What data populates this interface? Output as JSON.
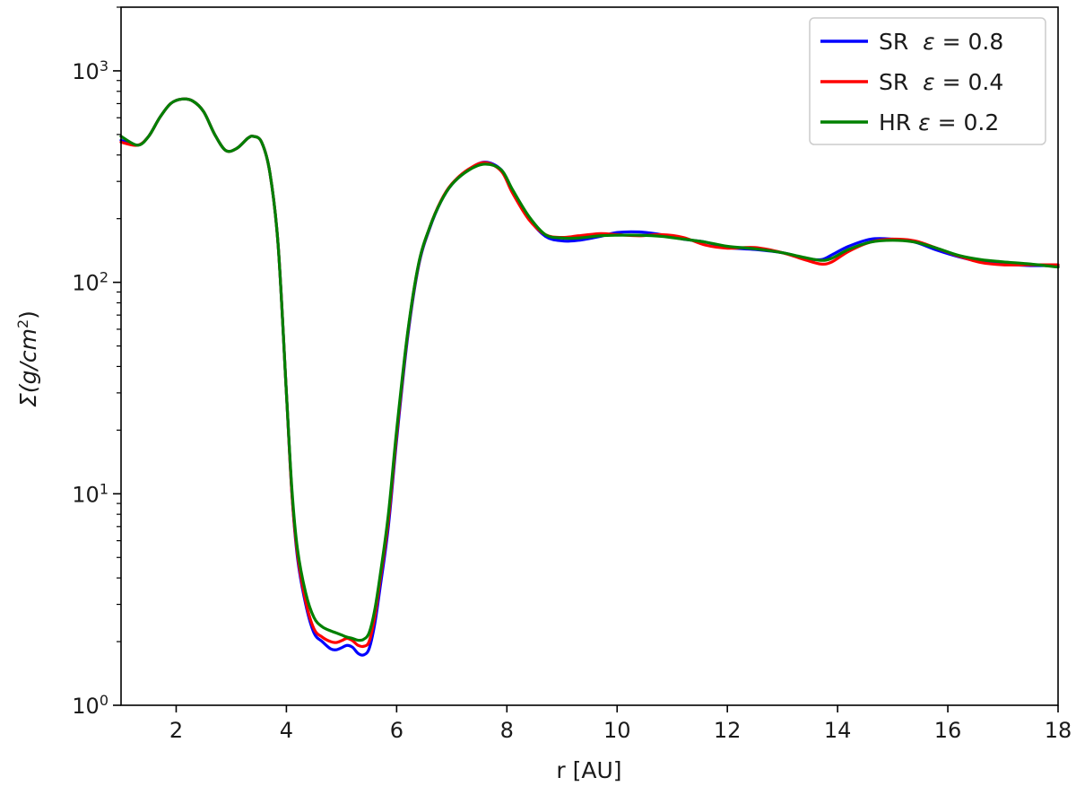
{
  "chart_data": {
    "type": "line",
    "title": "",
    "xlabel": "r [AU]",
    "ylabel_main": "Σ(g/cm",
    "ylabel_sup": "2",
    "ylabel_tail": ")",
    "xlim": [
      1,
      18
    ],
    "ylim": [
      1,
      2000
    ],
    "yscale": "log",
    "grid": false,
    "legend_position": "top-right",
    "x_ticks": [
      2,
      4,
      6,
      8,
      10,
      12,
      14,
      16,
      18
    ],
    "x_tick_labels": [
      "2",
      "4",
      "6",
      "8",
      "10",
      "12",
      "14",
      "16",
      "18"
    ],
    "y_ticks": [
      1,
      10,
      100,
      1000
    ],
    "y_tick_bases": [
      "10",
      "10",
      "10",
      "10"
    ],
    "y_tick_exps": [
      "0",
      "1",
      "2",
      "3"
    ],
    "series": [
      {
        "name_prefix": "SR",
        "name_eps": "ε",
        "name_value": " = 0.8",
        "color": "#0000ff",
        "points": [
          [
            1.0,
            470
          ],
          [
            1.3,
            445
          ],
          [
            1.5,
            490
          ],
          [
            1.7,
            600
          ],
          [
            1.9,
            700
          ],
          [
            2.1,
            735
          ],
          [
            2.3,
            720
          ],
          [
            2.5,
            640
          ],
          [
            2.7,
            500
          ],
          [
            2.9,
            420
          ],
          [
            3.1,
            430
          ],
          [
            3.3,
            480
          ],
          [
            3.4,
            490
          ],
          [
            3.55,
            460
          ],
          [
            3.7,
            330
          ],
          [
            3.85,
            150
          ],
          [
            4.0,
            30
          ],
          [
            4.1,
            10
          ],
          [
            4.2,
            5.0
          ],
          [
            4.35,
            3.0
          ],
          [
            4.5,
            2.2
          ],
          [
            4.65,
            2.0
          ],
          [
            4.8,
            1.85
          ],
          [
            4.9,
            1.83
          ],
          [
            5.0,
            1.87
          ],
          [
            5.1,
            1.92
          ],
          [
            5.2,
            1.88
          ],
          [
            5.3,
            1.76
          ],
          [
            5.4,
            1.73
          ],
          [
            5.5,
            1.85
          ],
          [
            5.6,
            2.4
          ],
          [
            5.7,
            3.6
          ],
          [
            5.85,
            7.0
          ],
          [
            6.0,
            18
          ],
          [
            6.2,
            55
          ],
          [
            6.4,
            120
          ],
          [
            6.6,
            180
          ],
          [
            6.8,
            240
          ],
          [
            7.0,
            290
          ],
          [
            7.3,
            340
          ],
          [
            7.6,
            370
          ],
          [
            7.9,
            340
          ],
          [
            8.1,
            270
          ],
          [
            8.4,
            200
          ],
          [
            8.7,
            165
          ],
          [
            9.0,
            157
          ],
          [
            9.3,
            158
          ],
          [
            9.7,
            165
          ],
          [
            10.0,
            172
          ],
          [
            10.4,
            173
          ],
          [
            10.8,
            168
          ],
          [
            11.2,
            160
          ],
          [
            11.6,
            155
          ],
          [
            12.0,
            146
          ],
          [
            12.5,
            143
          ],
          [
            13.0,
            138
          ],
          [
            13.4,
            130
          ],
          [
            13.7,
            128
          ],
          [
            13.9,
            135
          ],
          [
            14.2,
            148
          ],
          [
            14.6,
            160
          ],
          [
            15.0,
            160
          ],
          [
            15.4,
            155
          ],
          [
            15.8,
            142
          ],
          [
            16.2,
            132
          ],
          [
            16.6,
            125
          ],
          [
            17.0,
            122
          ],
          [
            17.5,
            120
          ],
          [
            18.0,
            120
          ]
        ]
      },
      {
        "name_prefix": "SR",
        "name_eps": "ε",
        "name_value": " = 0.4",
        "color": "#ff0000",
        "points": [
          [
            1.0,
            460
          ],
          [
            1.3,
            445
          ],
          [
            1.5,
            490
          ],
          [
            1.7,
            600
          ],
          [
            1.9,
            700
          ],
          [
            2.1,
            735
          ],
          [
            2.3,
            720
          ],
          [
            2.5,
            640
          ],
          [
            2.7,
            500
          ],
          [
            2.9,
            420
          ],
          [
            3.1,
            430
          ],
          [
            3.3,
            480
          ],
          [
            3.4,
            490
          ],
          [
            3.55,
            460
          ],
          [
            3.7,
            330
          ],
          [
            3.85,
            150
          ],
          [
            4.0,
            30
          ],
          [
            4.1,
            10
          ],
          [
            4.2,
            5.2
          ],
          [
            4.35,
            3.1
          ],
          [
            4.5,
            2.3
          ],
          [
            4.65,
            2.1
          ],
          [
            4.8,
            2.0
          ],
          [
            4.9,
            1.98
          ],
          [
            5.0,
            2.02
          ],
          [
            5.1,
            2.07
          ],
          [
            5.2,
            2.02
          ],
          [
            5.3,
            1.92
          ],
          [
            5.4,
            1.9
          ],
          [
            5.5,
            2.0
          ],
          [
            5.6,
            2.6
          ],
          [
            5.7,
            3.9
          ],
          [
            5.85,
            7.5
          ],
          [
            6.0,
            19
          ],
          [
            6.2,
            57
          ],
          [
            6.4,
            122
          ],
          [
            6.6,
            182
          ],
          [
            6.8,
            242
          ],
          [
            7.0,
            292
          ],
          [
            7.3,
            342
          ],
          [
            7.6,
            368
          ],
          [
            7.9,
            335
          ],
          [
            8.1,
            265
          ],
          [
            8.4,
            198
          ],
          [
            8.7,
            168
          ],
          [
            9.0,
            163
          ],
          [
            9.3,
            166
          ],
          [
            9.7,
            170
          ],
          [
            10.0,
            168
          ],
          [
            10.4,
            166
          ],
          [
            10.8,
            168
          ],
          [
            11.2,
            163
          ],
          [
            11.6,
            150
          ],
          [
            12.0,
            145
          ],
          [
            12.5,
            146
          ],
          [
            13.0,
            138
          ],
          [
            13.4,
            128
          ],
          [
            13.7,
            122
          ],
          [
            13.9,
            125
          ],
          [
            14.2,
            140
          ],
          [
            14.6,
            155
          ],
          [
            15.0,
            160
          ],
          [
            15.4,
            157
          ],
          [
            15.8,
            145
          ],
          [
            16.2,
            133
          ],
          [
            16.6,
            124
          ],
          [
            17.0,
            121
          ],
          [
            17.5,
            121
          ],
          [
            18.0,
            121
          ]
        ]
      },
      {
        "name_prefix": "HR",
        "name_eps": "ε",
        "name_value": " = 0.2",
        "color": "#008000",
        "points": [
          [
            1.0,
            490
          ],
          [
            1.3,
            445
          ],
          [
            1.5,
            490
          ],
          [
            1.7,
            600
          ],
          [
            1.9,
            700
          ],
          [
            2.1,
            735
          ],
          [
            2.3,
            720
          ],
          [
            2.5,
            640
          ],
          [
            2.7,
            500
          ],
          [
            2.9,
            420
          ],
          [
            3.1,
            430
          ],
          [
            3.3,
            480
          ],
          [
            3.4,
            490
          ],
          [
            3.55,
            460
          ],
          [
            3.7,
            330
          ],
          [
            3.85,
            150
          ],
          [
            4.0,
            30
          ],
          [
            4.1,
            10.5
          ],
          [
            4.2,
            5.5
          ],
          [
            4.35,
            3.4
          ],
          [
            4.5,
            2.6
          ],
          [
            4.65,
            2.35
          ],
          [
            4.8,
            2.25
          ],
          [
            4.9,
            2.2
          ],
          [
            5.0,
            2.15
          ],
          [
            5.1,
            2.1
          ],
          [
            5.2,
            2.07
          ],
          [
            5.3,
            2.03
          ],
          [
            5.4,
            2.05
          ],
          [
            5.5,
            2.2
          ],
          [
            5.6,
            2.8
          ],
          [
            5.7,
            4.1
          ],
          [
            5.85,
            8.0
          ],
          [
            6.0,
            20
          ],
          [
            6.2,
            58
          ],
          [
            6.4,
            123
          ],
          [
            6.6,
            182
          ],
          [
            6.8,
            240
          ],
          [
            7.0,
            290
          ],
          [
            7.3,
            338
          ],
          [
            7.6,
            362
          ],
          [
            7.9,
            340
          ],
          [
            8.1,
            275
          ],
          [
            8.4,
            205
          ],
          [
            8.7,
            168
          ],
          [
            9.0,
            162
          ],
          [
            9.3,
            162
          ],
          [
            9.7,
            166
          ],
          [
            10.0,
            167
          ],
          [
            10.4,
            167
          ],
          [
            10.8,
            165
          ],
          [
            11.2,
            160
          ],
          [
            11.6,
            155
          ],
          [
            12.0,
            148
          ],
          [
            12.5,
            144
          ],
          [
            13.0,
            138
          ],
          [
            13.4,
            131
          ],
          [
            13.7,
            127
          ],
          [
            13.9,
            130
          ],
          [
            14.2,
            143
          ],
          [
            14.6,
            155
          ],
          [
            15.0,
            158
          ],
          [
            15.4,
            155
          ],
          [
            15.8,
            145
          ],
          [
            16.2,
            134
          ],
          [
            16.6,
            128
          ],
          [
            17.0,
            125
          ],
          [
            17.5,
            122
          ],
          [
            18.0,
            118
          ]
        ]
      }
    ]
  }
}
